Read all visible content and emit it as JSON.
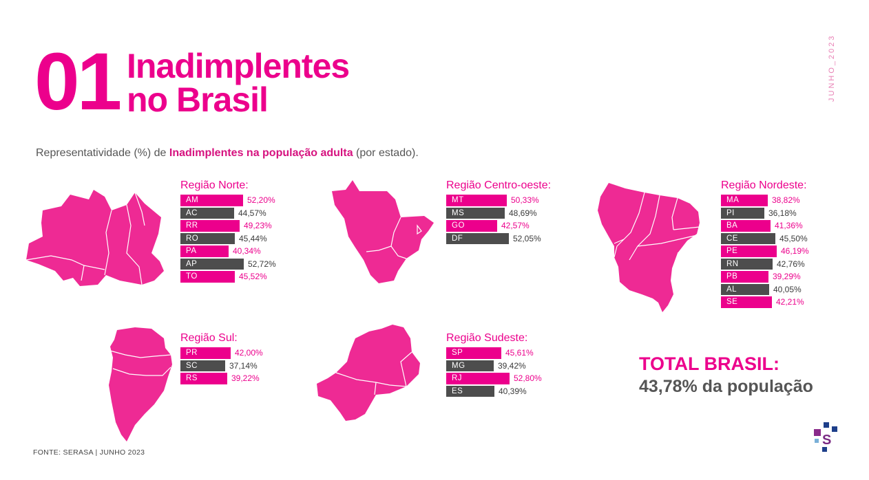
{
  "header": {
    "number": "01",
    "title_line1": "Inadimplentes",
    "title_line2": "no Brasil",
    "date_vertical": "JUNHO_2023"
  },
  "subtitle": {
    "prefix": "Representatividade (%) de ",
    "highlight": "Inadimplentes na população adulta",
    "suffix": " (por estado)."
  },
  "colors": {
    "pink": "#ec008c",
    "dark": "#4d4d4d",
    "map": "#ee2a94"
  },
  "chart_data": {
    "type": "bar",
    "orientation": "horizontal",
    "unit": "%",
    "regions": [
      {
        "name": "Região Norte:",
        "bars": [
          {
            "code": "AM",
            "value": 52.2,
            "label": "52,20%",
            "color": "pink"
          },
          {
            "code": "AC",
            "value": 44.57,
            "label": "44,57%",
            "color": "dark"
          },
          {
            "code": "RR",
            "value": 49.23,
            "label": "49,23%",
            "color": "pink"
          },
          {
            "code": "RO",
            "value": 45.44,
            "label": "45,44%",
            "color": "dark"
          },
          {
            "code": "PA",
            "value": 40.34,
            "label": "40,34%",
            "color": "pink"
          },
          {
            "code": "AP",
            "value": 52.72,
            "label": "52,72%",
            "color": "dark"
          },
          {
            "code": "TO",
            "value": 45.52,
            "label": "45,52%",
            "color": "pink"
          }
        ]
      },
      {
        "name": "Região Centro-oeste:",
        "bars": [
          {
            "code": "MT",
            "value": 50.33,
            "label": "50,33%",
            "color": "pink"
          },
          {
            "code": "MS",
            "value": 48.69,
            "label": "48,69%",
            "color": "dark"
          },
          {
            "code": "GO",
            "value": 42.57,
            "label": "42,57%",
            "color": "pink"
          },
          {
            "code": "DF",
            "value": 52.05,
            "label": "52,05%",
            "color": "dark"
          }
        ]
      },
      {
        "name": "Região Nordeste:",
        "bars": [
          {
            "code": "MA",
            "value": 38.82,
            "label": "38,82%",
            "color": "pink"
          },
          {
            "code": "PI",
            "value": 36.18,
            "label": "36,18%",
            "color": "dark"
          },
          {
            "code": "BA",
            "value": 41.36,
            "label": "41,36%",
            "color": "pink"
          },
          {
            "code": "CE",
            "value": 45.5,
            "label": "45,50%",
            "color": "dark"
          },
          {
            "code": "PE",
            "value": 46.19,
            "label": "46,19%",
            "color": "pink"
          },
          {
            "code": "RN",
            "value": 42.76,
            "label": "42,76%",
            "color": "dark"
          },
          {
            "code": "PB",
            "value": 39.29,
            "label": "39,29%",
            "color": "pink"
          },
          {
            "code": "AL",
            "value": 40.05,
            "label": "40,05%",
            "color": "dark"
          },
          {
            "code": "SE",
            "value": 42.21,
            "label": "42,21%",
            "color": "pink"
          }
        ]
      },
      {
        "name": "Região Sul:",
        "bars": [
          {
            "code": "PR",
            "value": 42.0,
            "label": "42,00%",
            "color": "pink"
          },
          {
            "code": "SC",
            "value": 37.14,
            "label": "37,14%",
            "color": "dark"
          },
          {
            "code": "RS",
            "value": 39.22,
            "label": "39,22%",
            "color": "pink"
          }
        ]
      },
      {
        "name": "Região Sudeste:",
        "bars": [
          {
            "code": "SP",
            "value": 45.61,
            "label": "45,61%",
            "color": "pink"
          },
          {
            "code": "MG",
            "value": 39.42,
            "label": "39,42%",
            "color": "dark"
          },
          {
            "code": "RJ",
            "value": 52.8,
            "label": "52,80%",
            "color": "pink"
          },
          {
            "code": "ES",
            "value": 40.39,
            "label": "40,39%",
            "color": "dark"
          }
        ]
      }
    ]
  },
  "total": {
    "label": "TOTAL BRASIL:",
    "value": "43,78% da população"
  },
  "footer": {
    "source": "FONTE: SERASA |  JUNHO 2023"
  },
  "logo": {
    "letter": "S"
  }
}
